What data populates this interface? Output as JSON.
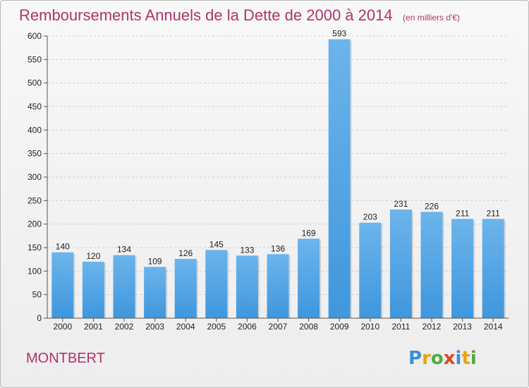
{
  "header": {
    "title": "Remboursements Annuels de la Dette de 2000 à 2014",
    "unit": "(en milliers d'€)"
  },
  "commune": "MONTBERT",
  "logo": {
    "text": "Proxiti",
    "letter_colors": [
      "#3b8fd9",
      "#e8a21a",
      "#4cae3f",
      "#e0452b",
      "#3b8fd9",
      "#e8a21a",
      "#4cae3f"
    ]
  },
  "colors": {
    "bar": "#3f97dd",
    "bar_light": "#6cb4ec",
    "title": "#b0336b",
    "grid": "#cfcfcf"
  },
  "chart_data": {
    "type": "bar",
    "title": "Remboursements Annuels de la Dette de 2000 à 2014",
    "subtitle": "(en milliers d'€)",
    "xlabel": "",
    "ylabel": "",
    "categories": [
      "2000",
      "2001",
      "2002",
      "2003",
      "2004",
      "2005",
      "2006",
      "2007",
      "2008",
      "2009",
      "2010",
      "2011",
      "2012",
      "2013",
      "2014"
    ],
    "values": [
      140,
      120,
      134,
      109,
      126,
      145,
      133,
      136,
      169,
      593,
      203,
      231,
      226,
      211,
      211
    ],
    "ylim": [
      0,
      600
    ],
    "yticks": [
      0,
      50,
      100,
      150,
      200,
      250,
      300,
      350,
      400,
      450,
      500,
      550,
      600
    ],
    "grid": true
  }
}
